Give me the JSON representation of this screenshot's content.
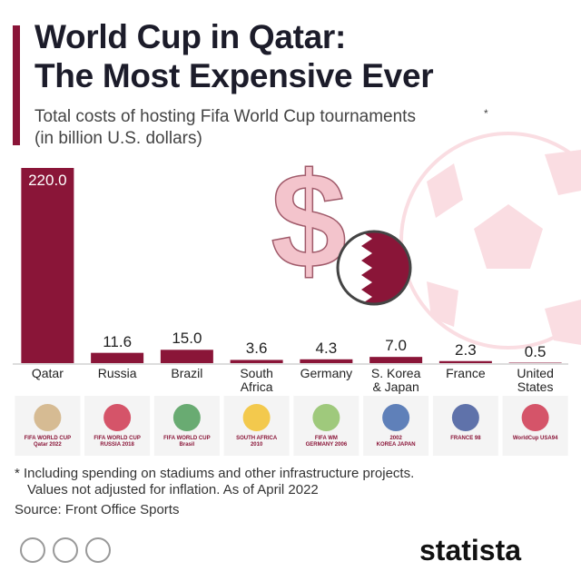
{
  "chart_data": {
    "type": "bar",
    "title": [
      "World Cup in Qatar:",
      "The Most Expensive Ever"
    ],
    "subtitle": [
      "Total costs of hosting Fifa World Cup tournaments",
      "*",
      "(in billion U.S. dollars)"
    ],
    "categories": [
      "Qatar",
      "Russia",
      "Brazil",
      "South\nAfrica",
      "Germany",
      "S. Korea\n& Japan",
      "France",
      "United\nStates"
    ],
    "values": [
      220.0,
      11.6,
      15.0,
      3.6,
      4.3,
      7.0,
      2.3,
      0.5
    ],
    "value_labels": [
      "220.0",
      "11.6",
      "15.0",
      "3.6",
      "4.3",
      "7.0",
      "2.3",
      "0.5"
    ],
    "color": "#8a1538",
    "logos": [
      "FIFA WORLD CUP\nQatar 2022",
      "FIFA WORLD CUP\nRUSSIA 2018",
      "FIFA WORLD CUP\nBrasil",
      "SOUTH AFRICA\n2010",
      "FIFA WM\nGERMANY 2006",
      "2002\nKOREA JAPAN",
      "FRANCE 98",
      "WorldCup USA94"
    ],
    "footnote": [
      "* Including spending on stadiums and other infrastructure projects.",
      "Values not adjusted for inflation. As of April 2022"
    ],
    "source": "Source: Front Office Sports",
    "brand": "statista"
  }
}
